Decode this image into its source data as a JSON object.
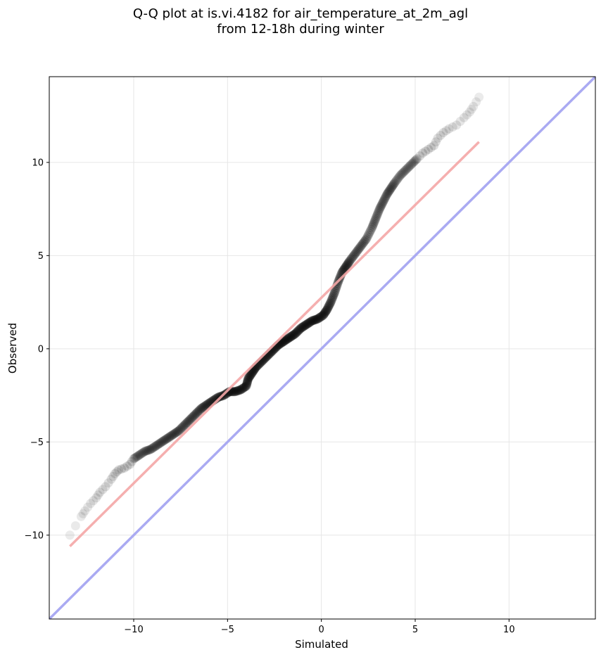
{
  "chart_data": {
    "type": "scatter",
    "title": "Q-Q plot at is.vi.4182 for air_temperature_at_2m_agl",
    "subtitle": "from 12-18h during winter",
    "xlabel": "Simulated",
    "ylabel": "Observed",
    "xlim": [
      -14.5,
      14.6
    ],
    "ylim": [
      -14.5,
      14.6
    ],
    "xticks": [
      -10,
      -5,
      0,
      5,
      10
    ],
    "yticks": [
      -10,
      -5,
      0,
      5,
      10
    ],
    "xtick_labels": [
      "−10",
      "−5",
      "0",
      "5",
      "10"
    ],
    "ytick_labels": [
      "−10",
      "−5",
      "0",
      "5",
      "10"
    ],
    "grid": true,
    "quantiles": {
      "x": [
        -13.4,
        -12.8,
        -12.6,
        -12.3,
        -12.0,
        -11.8,
        -11.5,
        -11.2,
        -11.0,
        -10.8,
        -10.5,
        -10.2,
        -10.0,
        -9.7,
        -9.4,
        -9.1,
        -8.8,
        -8.5,
        -8.2,
        -7.9,
        -7.6,
        -7.3,
        -7.0,
        -6.7,
        -6.4,
        -6.1,
        -5.8,
        -5.5,
        -5.2,
        -4.9,
        -4.6,
        -4.3,
        -4.0,
        -3.9,
        -3.7,
        -3.5,
        -3.2,
        -2.9,
        -2.6,
        -2.3,
        -2.0,
        -1.7,
        -1.4,
        -1.1,
        -0.8,
        -0.5,
        -0.2,
        0.1,
        0.3,
        0.5,
        0.7,
        0.9,
        1.1,
        1.3,
        1.5,
        1.8,
        2.1,
        2.4,
        2.7,
        2.9,
        3.1,
        3.3,
        3.5,
        3.7,
        3.9,
        4.2,
        4.5,
        4.8,
        5.1,
        5.4,
        5.7,
        6.0,
        6.2,
        6.5,
        6.8,
        7.2,
        7.6,
        7.9,
        8.1,
        8.4
      ],
      "y": [
        -10.0,
        -9.0,
        -8.7,
        -8.3,
        -8.0,
        -7.7,
        -7.4,
        -7.0,
        -6.7,
        -6.5,
        -6.4,
        -6.2,
        -5.9,
        -5.7,
        -5.5,
        -5.4,
        -5.2,
        -5.0,
        -4.8,
        -4.6,
        -4.4,
        -4.1,
        -3.8,
        -3.5,
        -3.2,
        -3.0,
        -2.8,
        -2.6,
        -2.5,
        -2.3,
        -2.3,
        -2.2,
        -2.0,
        -1.6,
        -1.3,
        -1.0,
        -0.7,
        -0.4,
        -0.1,
        0.2,
        0.4,
        0.6,
        0.8,
        1.1,
        1.3,
        1.5,
        1.6,
        1.8,
        2.1,
        2.5,
        3.0,
        3.6,
        4.1,
        4.4,
        4.7,
        5.1,
        5.5,
        5.9,
        6.5,
        7.0,
        7.5,
        7.9,
        8.3,
        8.6,
        8.9,
        9.3,
        9.6,
        9.9,
        10.2,
        10.5,
        10.7,
        10.9,
        11.3,
        11.6,
        11.8,
        12.0,
        12.4,
        12.7,
        13.0,
        13.5
      ]
    },
    "fit_line": {
      "x": [
        -13.4,
        8.4
      ],
      "y": [
        -10.6,
        11.1
      ],
      "color": "#f4a6a6"
    },
    "identity_line": {
      "color": "#aaaaf2"
    },
    "point_color": "#000000"
  }
}
